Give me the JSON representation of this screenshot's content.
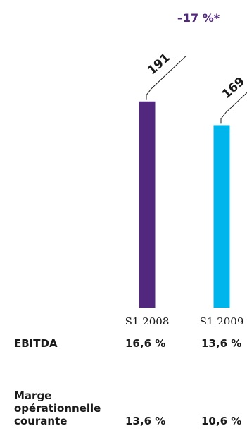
{
  "chart_data": {
    "type": "bar",
    "categories": [
      "S1 2008",
      "S1 2009"
    ],
    "values": [
      191,
      169
    ],
    "value_labels": [
      "191",
      "169"
    ],
    "change_label": "–17 %*",
    "colors": [
      "#52287f",
      "#00b5ec"
    ],
    "change_color": "#52287f"
  },
  "table": {
    "rows": [
      {
        "label": "EBITDA",
        "values": [
          "16,6 %",
          "13,6 %"
        ]
      },
      {
        "label_lines": [
          "Marge",
          "opérationnelle",
          "courante"
        ],
        "values": [
          "13,6 %",
          "10,6 %"
        ]
      }
    ]
  }
}
